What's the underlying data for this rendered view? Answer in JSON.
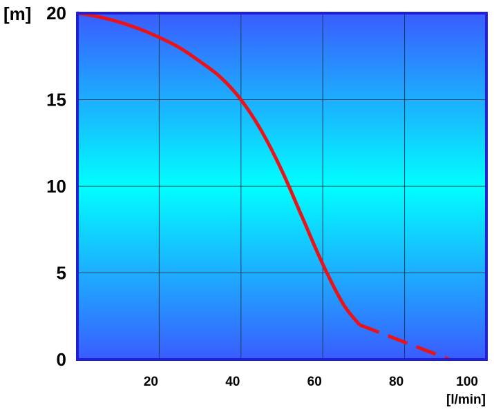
{
  "chart_data": {
    "type": "line",
    "title": "",
    "xlabel": "[l/min]",
    "ylabel": "[m]",
    "xlim": [
      0,
      100
    ],
    "ylim": [
      0,
      20
    ],
    "x_ticks": [
      20,
      40,
      60,
      80,
      100
    ],
    "y_ticks": [
      0,
      5,
      10,
      15,
      20
    ],
    "grid": true,
    "legend": "none",
    "series": [
      {
        "style": "solid",
        "color": "#e8141a",
        "x": [
          0,
          5,
          10,
          15,
          20,
          25,
          30,
          35,
          40,
          45,
          50,
          55,
          60,
          65,
          69
        ],
        "y": [
          20,
          19.8,
          19.5,
          19.1,
          18.6,
          18.0,
          17.2,
          16.3,
          15.0,
          13.2,
          10.9,
          8.2,
          5.5,
          3.2,
          2.0
        ]
      },
      {
        "style": "dashed",
        "color": "#e8141a",
        "x": [
          69,
          80,
          91
        ],
        "y": [
          2.0,
          1.0,
          0
        ]
      }
    ]
  },
  "colors": {
    "background_top": "#3a5cff",
    "background_middle": "#00ffff",
    "background_bottom": "#3a5cff",
    "frame": "#1f1fd6",
    "gridline": "#1a3a5a",
    "curve": "#e8141a"
  }
}
